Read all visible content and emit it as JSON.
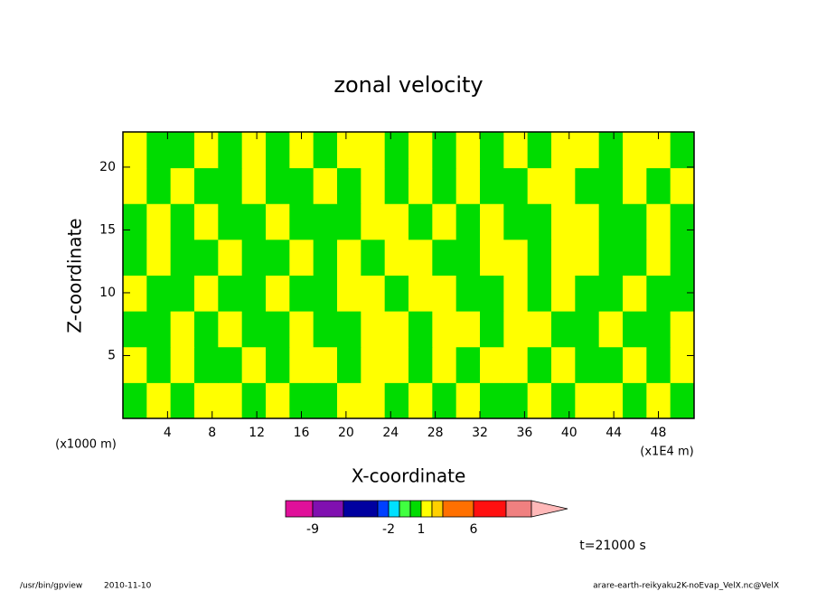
{
  "chart_data": {
    "type": "contourf",
    "title": "zonal velocity",
    "xlabel": "X-coordinate",
    "ylabel": "Z-coordinate",
    "x_unit": "(x1000 m)",
    "x_unit_right": "(x1E4 m)",
    "time_label": "t=21000 s",
    "footer_program": "/usr/bin/gpview",
    "footer_date": "2010-11-10",
    "footer_source": "arare-earth-reikyaku2K-noEvap_VelX.nc@VelX",
    "xlim": [
      0,
      51.2
    ],
    "ylim": [
      0,
      22.8
    ],
    "xticks": [
      4,
      8,
      12,
      16,
      20,
      24,
      28,
      32,
      36,
      40,
      44,
      48
    ],
    "yticks": [
      5,
      10,
      15,
      20
    ],
    "x": [
      1.0667,
      3.2,
      5.3333,
      7.4667,
      9.6,
      11.7333,
      13.8667,
      16,
      18.1333,
      20.2667,
      22.4,
      24.5333,
      26.6667,
      28.8,
      30.9333,
      33.0667,
      35.2,
      37.3333,
      39.4667,
      41.6,
      43.7333,
      45.8667,
      48,
      50.1333
    ],
    "y": [
      1.425,
      4.275,
      7.125,
      9.975,
      12.825,
      15.675,
      18.525,
      21.375
    ],
    "z": [
      [
        0.5,
        1.5,
        0.5,
        1.5,
        1.5,
        0.5,
        1.5,
        0.5,
        0.5,
        1.5,
        1.5,
        0.5,
        1.5,
        0.5,
        1.5,
        0.5,
        0.5,
        1.5,
        0.5,
        1.5,
        1.5,
        0.5,
        1.5,
        0.5
      ],
      [
        1.5,
        0.5,
        1.5,
        0.5,
        0.5,
        1.5,
        0.5,
        1.5,
        1.5,
        0.5,
        1.5,
        1.5,
        0.5,
        1.5,
        0.5,
        1.5,
        1.5,
        0.5,
        1.5,
        0.5,
        0.5,
        1.5,
        0.5,
        1.5
      ],
      [
        0.5,
        0.5,
        1.5,
        0.5,
        1.5,
        0.5,
        0.5,
        1.5,
        0.5,
        0.5,
        1.5,
        1.5,
        0.5,
        1.5,
        1.5,
        0.5,
        1.5,
        1.5,
        0.5,
        0.5,
        1.5,
        0.5,
        0.5,
        1.5
      ],
      [
        1.5,
        0.5,
        0.5,
        1.5,
        0.5,
        0.5,
        1.5,
        0.5,
        0.5,
        1.5,
        1.5,
        0.5,
        1.5,
        1.5,
        0.5,
        0.5,
        1.5,
        0.5,
        1.5,
        0.5,
        0.5,
        1.5,
        0.5,
        0.5
      ],
      [
        0.5,
        1.5,
        0.5,
        0.5,
        1.5,
        0.5,
        0.5,
        1.5,
        0.5,
        1.5,
        0.5,
        1.5,
        1.5,
        0.5,
        0.5,
        1.5,
        1.5,
        0.5,
        1.5,
        1.5,
        0.5,
        0.5,
        1.5,
        0.5
      ],
      [
        0.5,
        1.5,
        0.5,
        1.5,
        0.5,
        0.5,
        1.5,
        0.5,
        0.5,
        0.5,
        1.5,
        1.5,
        0.5,
        1.5,
        0.5,
        1.5,
        0.5,
        0.5,
        1.5,
        1.5,
        0.5,
        0.5,
        1.5,
        0.5
      ],
      [
        1.5,
        0.5,
        1.5,
        0.5,
        0.5,
        1.5,
        0.5,
        0.5,
        1.5,
        0.5,
        1.5,
        0.5,
        1.5,
        0.5,
        1.5,
        0.5,
        0.5,
        1.5,
        1.5,
        0.5,
        0.5,
        1.5,
        0.5,
        1.5
      ],
      [
        1.5,
        0.5,
        0.5,
        1.5,
        0.5,
        1.5,
        0.5,
        1.5,
        0.5,
        1.5,
        1.5,
        0.5,
        1.5,
        0.5,
        1.5,
        0.5,
        1.5,
        0.5,
        1.5,
        1.5,
        0.5,
        1.5,
        1.5,
        0.5
      ]
    ],
    "levels": [
      -12,
      -9,
      -6,
      -3,
      -2,
      -1,
      0,
      1,
      2,
      3,
      6,
      9,
      12
    ],
    "colors": [
      "#e0109a",
      "#8010b0",
      "#0000a0",
      "#0040ff",
      "#00e0ff",
      "#40ff40",
      "#00dc00",
      "#ffff00",
      "#ffd000",
      "#ff7000",
      "#ff1010",
      "#f08080"
    ],
    "extend_color": "#ffb8b8",
    "colorbar_ticks": [
      -9,
      -2,
      1,
      6
    ]
  }
}
